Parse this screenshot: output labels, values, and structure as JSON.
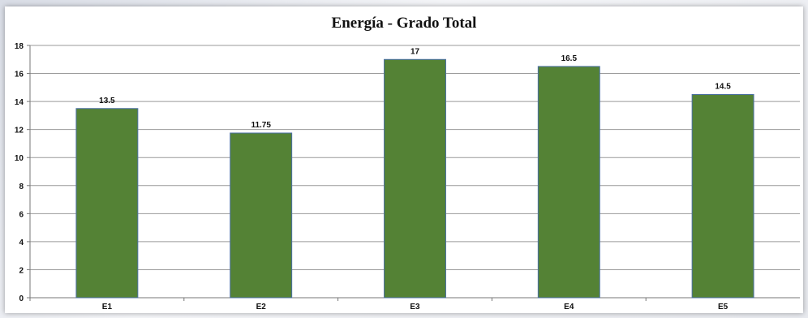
{
  "chart_data": {
    "type": "bar",
    "title": "Energía - Grado Total",
    "categories": [
      "E1",
      "E2",
      "E3",
      "E4",
      "E5"
    ],
    "values": [
      13.5,
      11.75,
      17,
      16.5,
      14.5
    ],
    "data_labels": [
      "13.5",
      "11.75",
      "17",
      "16.5",
      "14.5"
    ],
    "xlabel": "",
    "ylabel": "",
    "ylim": [
      0,
      18
    ],
    "yticks": [
      0,
      2,
      4,
      6,
      8,
      10,
      12,
      14,
      16,
      18
    ],
    "grid": true,
    "legend": "none",
    "bar_color": "#548235",
    "bar_edge_color": "#4a6fa5"
  }
}
